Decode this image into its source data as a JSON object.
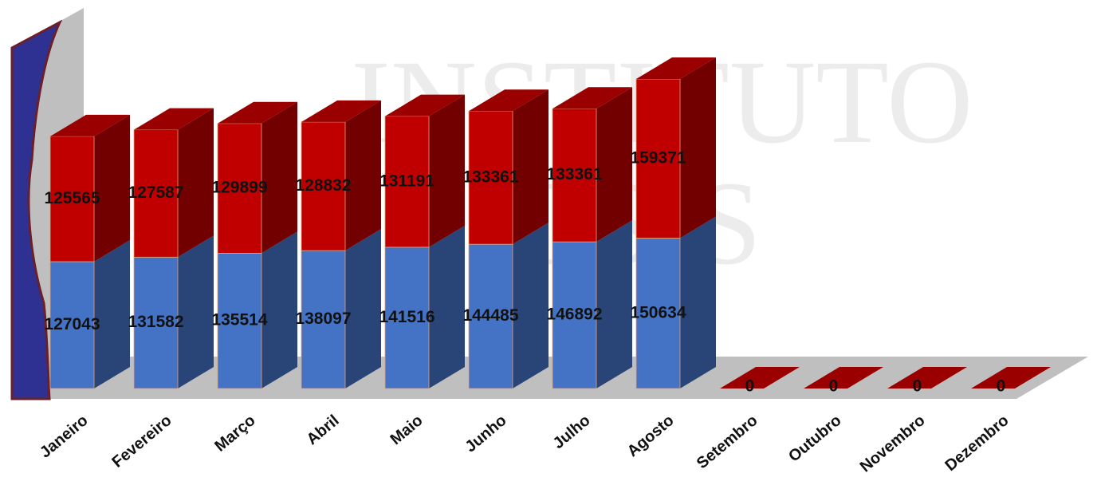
{
  "chart_data": {
    "type": "bar3d_stacked",
    "watermark": [
      "INSTITUTO",
      "OSIS"
    ],
    "categories": [
      "Janeiro",
      "Fevereiro",
      "Março",
      "Abril",
      "Maio",
      "Junho",
      "Julho",
      "Agosto",
      "Setembro",
      "Outubro",
      "Novembro",
      "Dezembro"
    ],
    "series": [
      {
        "color": "#4472c4",
        "values": [
          127043,
          131582,
          135514,
          138097,
          141516,
          144485,
          146892,
          150634,
          0,
          0,
          0,
          0
        ]
      },
      {
        "color": "#c00000",
        "values": [
          125565,
          127587,
          129899,
          128832,
          131191,
          133361,
          133361,
          159371,
          0,
          0,
          0,
          0
        ]
      }
    ]
  }
}
